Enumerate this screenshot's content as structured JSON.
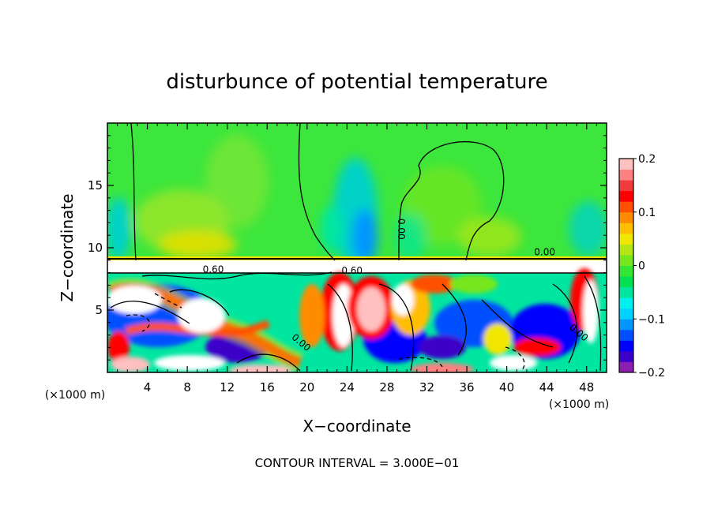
{
  "chart_data": {
    "type": "heatmap",
    "title": "disturbunce of potential temperature",
    "xlabel": "X−coordinate",
    "ylabel": "Z−coordinate",
    "x_unit_label_left": "(×1000 m)",
    "x_unit_label_right": "(×1000 m)",
    "footer": "CONTOUR INTERVAL = 3.000E−01",
    "xlim": [
      0,
      50
    ],
    "ylim": [
      0,
      20
    ],
    "x_ticks": [
      4,
      8,
      12,
      16,
      20,
      24,
      28,
      32,
      36,
      40,
      44,
      48
    ],
    "x_tick_labels": [
      "4",
      "8",
      "12",
      "16",
      "20",
      "24",
      "28",
      "32",
      "36",
      "40",
      "44",
      "48"
    ],
    "y_ticks": [
      5,
      10,
      15
    ],
    "y_tick_labels": [
      "5",
      "10",
      "15"
    ],
    "colorbar": {
      "min": -0.2,
      "max": 0.2,
      "ticks": [
        0.2,
        0.1,
        0,
        -0.1,
        -0.2
      ],
      "tick_labels": [
        "0.2",
        "0.1",
        "0",
        "−0.1",
        "−0.2"
      ],
      "colors": [
        "#8a1fb0",
        "#3c00c8",
        "#0000ff",
        "#0050ff",
        "#0096ff",
        "#00d2ff",
        "#00f0f0",
        "#00e6a0",
        "#00e050",
        "#32e632",
        "#78e61e",
        "#b4e614",
        "#f0e600",
        "#ffbe00",
        "#ff8c00",
        "#ff5000",
        "#ff0000",
        "#f03c3c",
        "#ff8080",
        "#ffc0c0"
      ]
    },
    "contour_labels": [
      {
        "text": "0.60",
        "x": 10.6,
        "z": 8.0
      },
      {
        "text": "0.60",
        "x": 24.5,
        "z": 7.9
      },
      {
        "text": "0.00",
        "x": 29.1,
        "z": 11.5
      },
      {
        "text": "0.00",
        "x": 43.8,
        "z": 9.4
      },
      {
        "text": "0.00",
        "x": 19.2,
        "z": 2.2
      },
      {
        "text": "0.00",
        "x": 47.0,
        "z": 3.0
      }
    ]
  }
}
